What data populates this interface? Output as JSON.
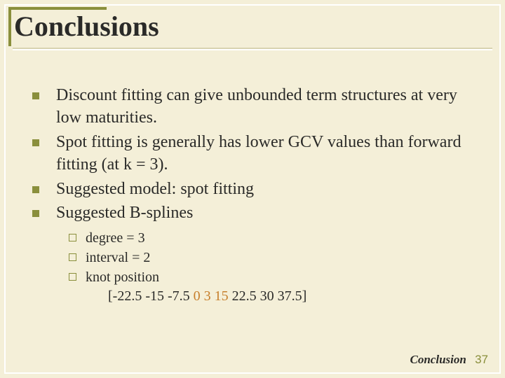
{
  "slide": {
    "title": "Conclusions",
    "bullets": [
      "Discount fitting can give unbounded term structures at very low maturities.",
      "Spot fitting is generally has lower GCV values than forward fitting (at k = 3).",
      "Suggested model: spot fitting",
      "Suggested B-splines"
    ],
    "sub_bullets": [
      "degree = 3",
      "interval = 2",
      "knot position"
    ],
    "knot_position": {
      "prefix": "[-22.5 -15 -7.5 ",
      "highlight": "0 3 15",
      "suffix": " 22.5 30 37.5]"
    },
    "footer_label": "Conclusion",
    "footer_page": "37"
  },
  "style": {
    "background_color": "#f4efd8",
    "accent_color": "#8a8f3c",
    "title_fontsize": 40,
    "body_fontsize": 24,
    "sub_fontsize": 20,
    "highlight_color": "#c77f2c",
    "text_color": "#2a2a28",
    "outer_border_color": "#ffffff",
    "bullet_shape": "filled-square",
    "sub_bullet_shape": "hollow-square"
  }
}
